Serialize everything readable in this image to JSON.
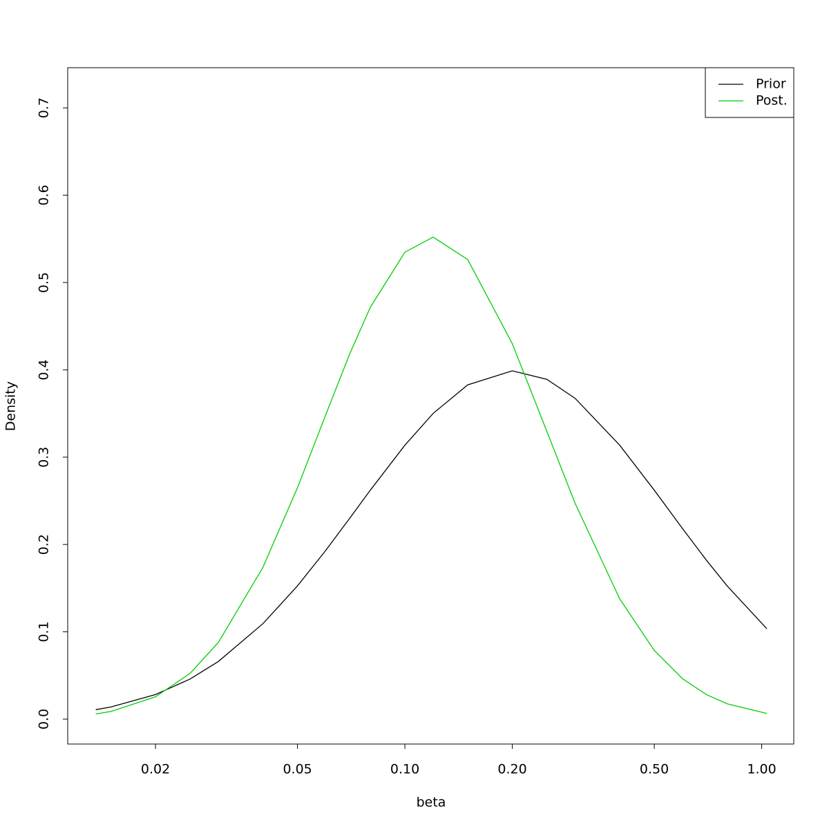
{
  "chart_data": {
    "type": "line",
    "x_label": "beta",
    "y_label": "Density",
    "x_log": true,
    "x": [
      0.0136,
      0.015,
      0.02,
      0.025,
      0.03,
      0.04,
      0.05,
      0.06,
      0.07,
      0.08,
      0.1,
      0.12,
      0.15,
      0.2,
      0.25,
      0.3,
      0.4,
      0.5,
      0.6,
      0.7,
      0.8,
      1.034
    ],
    "series": [
      {
        "name": "Prior",
        "color": "#000000",
        "values": [
          0.0108,
          0.0139,
          0.0282,
          0.0459,
          0.066,
          0.1093,
          0.1526,
          0.1932,
          0.2299,
          0.2622,
          0.3137,
          0.3501,
          0.3828,
          0.3989,
          0.3891,
          0.3674,
          0.3137,
          0.2622,
          0.2182,
          0.182,
          0.1526,
          0.1035
        ]
      },
      {
        "name": "Post.",
        "color": "#00cd00",
        "values": [
          0.0059,
          0.0088,
          0.0256,
          0.0524,
          0.0877,
          0.1738,
          0.265,
          0.3485,
          0.418,
          0.4716,
          0.5347,
          0.552,
          0.5263,
          0.43,
          0.3295,
          0.2471,
          0.1378,
          0.0786,
          0.0463,
          0.0281,
          0.0176,
          0.0065
        ]
      }
    ],
    "xlim": [
      0.01135,
      1.23
    ],
    "ylim": [
      -0.0285,
      0.746
    ],
    "xticks": [
      0.02,
      0.05,
      {
        "value": 0.1,
        "label": "0.10"
      },
      {
        "value": 0.2,
        "label": "0.20"
      },
      {
        "value": 0.5,
        "label": "0.50"
      },
      {
        "value": 1,
        "label": "1.00"
      }
    ],
    "yticks": [
      {
        "value": 0,
        "label": "0.0"
      },
      0.1,
      0.2,
      0.3,
      0.4,
      0.5,
      0.6,
      0.7
    ],
    "grid": false,
    "legend": "topright"
  }
}
